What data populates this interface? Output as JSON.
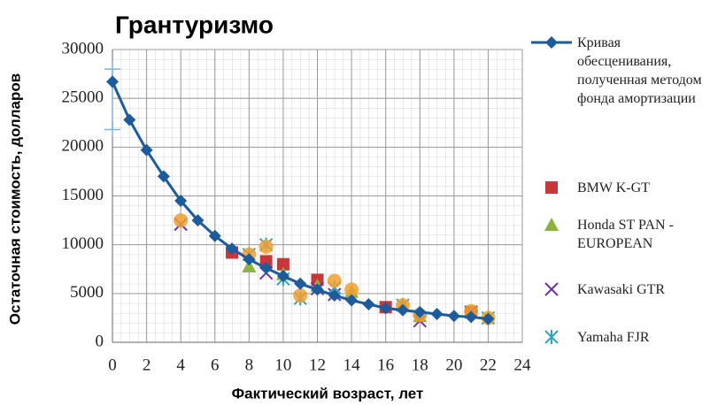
{
  "chart_data": {
    "type": "line",
    "title": "Грантуризмо",
    "x_label": "Фактический возраст, лет",
    "y_label": "Остаточная стоимость, долларов",
    "xlim": [
      0,
      24
    ],
    "xticks": [
      0,
      2,
      4,
      6,
      8,
      10,
      12,
      14,
      16,
      18,
      20,
      22,
      24
    ],
    "ylim": [
      0,
      30000
    ],
    "yticks": [
      0,
      5000,
      10000,
      15000,
      20000,
      25000,
      30000
    ],
    "grid": true,
    "legend": "right",
    "error_bars": [
      {
        "x": 0,
        "low": 21800,
        "high": 28000,
        "color": "#7fb2dd"
      }
    ],
    "series": [
      {
        "name": "Кривая обесценивания, полученная методом фонда амортизации",
        "type": "line",
        "marker": "diamond",
        "color": "#1c5c9c",
        "x": [
          0,
          1,
          2,
          3,
          4,
          5,
          6,
          7,
          8,
          9,
          10,
          11,
          12,
          13,
          14,
          15,
          16,
          17,
          18,
          19,
          20,
          21,
          22
        ],
        "values": [
          26700,
          22800,
          19700,
          17000,
          14500,
          12500,
          10900,
          9600,
          8500,
          7600,
          6800,
          6000,
          5400,
          4800,
          4300,
          3900,
          3500,
          3300,
          3100,
          2900,
          2700,
          2600,
          2400
        ]
      },
      {
        "name": "BMW K-GT",
        "type": "scatter",
        "marker": "square",
        "color": "#c8373a",
        "x": [
          7,
          9,
          10,
          12,
          16,
          21
        ],
        "values": [
          9200,
          8300,
          8000,
          6400,
          3600,
          3100
        ]
      },
      {
        "name": "Honda ST PAN - EUROPEAN",
        "type": "scatter",
        "marker": "triangle",
        "color": "#8db33f",
        "x": [
          8,
          10,
          12,
          14,
          17,
          18
        ],
        "values": [
          7800,
          7000,
          5800,
          5200,
          3900,
          2700
        ]
      },
      {
        "name": "Kawasaki GTR",
        "type": "scatter",
        "marker": "cross",
        "color": "#7030a0",
        "x": [
          4,
          9,
          12,
          13,
          18,
          21
        ],
        "values": [
          12100,
          7100,
          5500,
          4900,
          2200,
          3100
        ]
      },
      {
        "name": "Yamaha FJR",
        "type": "scatter",
        "marker": "asterisk",
        "color": "#2aa4c4",
        "x": [
          8,
          9,
          10,
          11,
          13,
          17,
          22
        ],
        "values": [
          9000,
          10000,
          6500,
          4500,
          5600,
          3800,
          2500
        ]
      },
      {
        "type": "scatter",
        "marker": "circle",
        "color": "#f0a030",
        "x": [
          4,
          8,
          9,
          11,
          13,
          14,
          17,
          18,
          21,
          22
        ],
        "values": [
          12500,
          9000,
          9800,
          4800,
          6300,
          5400,
          3800,
          2800,
          3200,
          2500
        ]
      }
    ]
  }
}
